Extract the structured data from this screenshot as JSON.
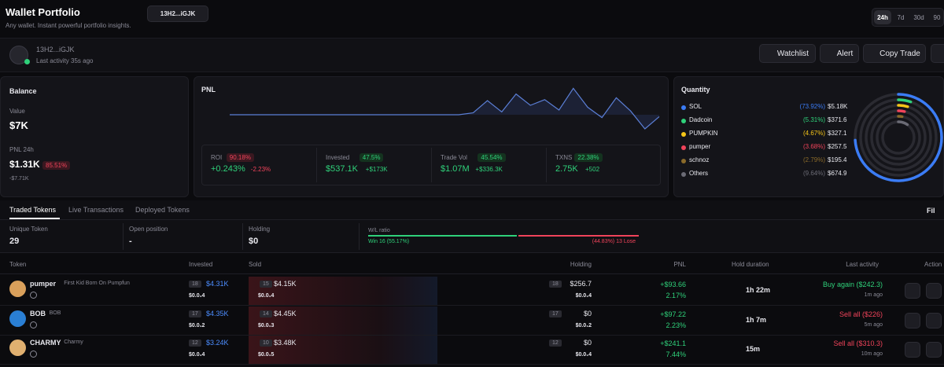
{
  "header": {
    "title": "Wallet Portfolio",
    "subtitle": "Any wallet. Instant powerful portfolio insights.",
    "wallet": "13H2...iGJK",
    "timeframes": [
      "24h",
      "7d",
      "30d",
      "90"
    ]
  },
  "profile": {
    "address": "13H2...iGJK",
    "activity": "Last activity 35s ago",
    "buttons": [
      "Watchlist",
      "Alert",
      "Copy Trade"
    ]
  },
  "balance": {
    "title": "Balance",
    "value_label": "Value",
    "value": "$7K",
    "pnl_label": "PNL 24h",
    "pnl": "$1.31K",
    "pnl_change": "85.51%",
    "pnl_sub": "-$7.71K"
  },
  "pnl": {
    "title": "PNL",
    "line": [
      0,
      0,
      0,
      0,
      0,
      0,
      0,
      0,
      0,
      0,
      0,
      0,
      0,
      0,
      0,
      0,
      0,
      0.2,
      1.5,
      0.3,
      2.2,
      1.0,
      1.6,
      0.5,
      2.8,
      0.8,
      -0.3,
      1.8,
      0.4,
      -1.5,
      -0.2
    ],
    "ylim": [
      -2,
      3
    ],
    "stats": [
      {
        "label": "ROI",
        "badge": "90.18%",
        "value": "+0.243%",
        "change": "-2.23%"
      },
      {
        "label": "Invested",
        "badge": "47.5%",
        "value": "$537.1K",
        "change": "+$173K"
      },
      {
        "label": "Trade Vol",
        "badge": "45.54%",
        "value": "$1.07M",
        "change": "+$336.3K"
      },
      {
        "label": "TXNS",
        "badge": "22.38%",
        "value": "2.75K",
        "change": "+502"
      }
    ]
  },
  "quantity": {
    "title": "Quantity",
    "items": [
      {
        "name": "SOL",
        "percent": 73.92,
        "percent_label": "(73.92%)",
        "value": "$5.18K",
        "color": "#3b7cf5"
      },
      {
        "name": "Dadcoin",
        "percent": 5.31,
        "percent_label": "(5.31%)",
        "value": "$371.6",
        "color": "#2fd17a"
      },
      {
        "name": "PUMPKIN",
        "percent": 4.67,
        "percent_label": "(4.67%)",
        "value": "$327.1",
        "color": "#f5c518"
      },
      {
        "name": "pumper",
        "percent": 3.68,
        "percent_label": "(3.68%)",
        "value": "$257.5",
        "color": "#f0435a"
      },
      {
        "name": "schnoz",
        "percent": 2.79,
        "percent_label": "(2.79%)",
        "value": "$195.4",
        "color": "#8a6a2a"
      },
      {
        "name": "Others",
        "percent": 9.64,
        "percent_label": "(9.64%)",
        "value": "$674.9",
        "color": "#6b6b75"
      }
    ]
  },
  "tabs": [
    "Traded Tokens",
    "Live Transactions",
    "Deployed Tokens"
  ],
  "filter": "Fil",
  "summary": {
    "cells": [
      {
        "label": "Unique Token",
        "value": "29"
      },
      {
        "label": "Open position",
        "value": "-"
      },
      {
        "label": "Holding",
        "value": "$0"
      }
    ],
    "wl_label": "W/L ratio",
    "win": {
      "label": "Win 16 (55.17%)",
      "value": 55.17
    },
    "lose": {
      "label": "(44.83%) 13 Lose",
      "value": 44.83
    }
  },
  "table": {
    "columns": [
      "Token",
      "Invested",
      "Sold",
      "Holding",
      "PNL",
      "Hold duration",
      "Last activity",
      "Action"
    ],
    "rows": [
      {
        "name": "pumper",
        "desc": "First Kid Born On Pumpfun",
        "inv_n": "18",
        "inv": "$4.31K",
        "inv_sub": "$0.0₁4",
        "sold_n": "15",
        "sold": "$4.15K",
        "sold_sub": "$0.0₁4",
        "hold_n": "18",
        "hold": "$256.7",
        "hold_sub": "$0.0₁4",
        "pnl": "+$93.66",
        "pnl_pct": "2.17%",
        "duration": "1h 22m",
        "last": "Buy again ($242.3)",
        "last_time": "1m ago"
      },
      {
        "name": "BOB",
        "desc": "BOB",
        "inv_n": "17",
        "inv": "$4.35K",
        "inv_sub": "$0.0₁2",
        "sold_n": "14",
        "sold": "$4.45K",
        "sold_sub": "$0.0₁3",
        "hold_n": "17",
        "hold": "$0",
        "hold_sub": "$0.0₁2",
        "pnl": "+$97.22",
        "pnl_pct": "2.23%",
        "duration": "1h 7m",
        "last": "Sell all ($226)",
        "last_time": "5m ago"
      },
      {
        "name": "CHARMY",
        "desc": "Charmy",
        "inv_n": "12",
        "inv": "$3.24K",
        "inv_sub": "$0.0₁4",
        "sold_n": "10",
        "sold": "$3.48K",
        "sold_sub": "$0.0₁5",
        "hold_n": "12",
        "hold": "$0",
        "hold_sub": "$0.0₁4",
        "pnl": "+$241.1",
        "pnl_pct": "7.44%",
        "duration": "15m",
        "last": "Sell all ($310.3)",
        "last_time": "10m ago"
      }
    ]
  }
}
